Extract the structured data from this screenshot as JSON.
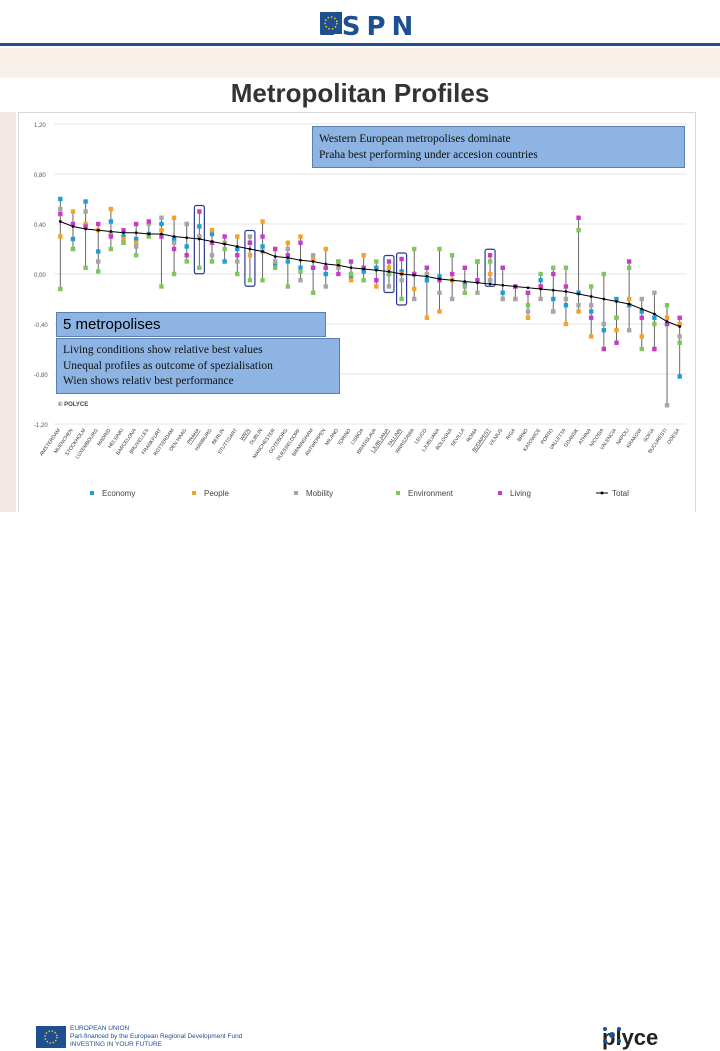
{
  "header": {
    "logo_text_left": "ESP",
    "logo_text_right": "N"
  },
  "title": "Metropolitan Profiles",
  "callout_top": {
    "line1": "Western European metropolises dominate",
    "line2": "Praha best performing under accesion countries"
  },
  "callout_left": {
    "heading": "5 metropolises",
    "line1": "Living conditions show relative best values",
    "line2": "Unequal profiles as outcome of spezialisation",
    "line3": "Wien shows relativ best performance"
  },
  "copyright": "© POLYCE",
  "footer": {
    "eu_line1": "EUROPEAN UNION",
    "eu_line2": "Part-financed by the European Regional Development Fund",
    "eu_line3": "INVESTING IN YOUR FUTURE",
    "brand_left": "p",
    "brand_right": "lyce"
  },
  "colors": {
    "economy": "#1f9ed6",
    "people": "#f4a228",
    "mobility": "#a6a6a6",
    "environment": "#7fc65c",
    "living": "#c83bc9",
    "total": "#000000",
    "callout": "#8eb4e3",
    "brand": "#1d4f91"
  },
  "chart_data": {
    "type": "scatter",
    "title": "",
    "ylim": [
      -1.2,
      1.2
    ],
    "yticks": [
      "1,20",
      "0,80",
      "0,40",
      "0,00",
      "-0,40",
      "-0,80",
      "-1,20"
    ],
    "ytick_values": [
      1.2,
      0.8,
      0.4,
      0.0,
      -0.4,
      -0.8,
      -1.2
    ],
    "categories": [
      "AMSTERDAM",
      "MUENCHEN",
      "STOCKHOLM",
      "LUXEMBOURG",
      "MADRID",
      "HELSINKI",
      "BARCELONA",
      "BRUXELLES",
      "FRANKFURT",
      "ROTTERDAM",
      "DEN HAAG",
      "PRAHA",
      "HAMBURG",
      "BERLIN",
      "STUTTGART",
      "WIEN",
      "DUBLIN",
      "MANCHESTER",
      "GOTEBORG",
      "DUESSELDORF",
      "BIRMINGHAM",
      "ANTWERPEN",
      "MILANO",
      "TORINO",
      "LISBOA",
      "BRATISLAVA",
      "LJUBLJANA",
      "TALLINN",
      "WARSZAWA",
      "LEUCO",
      "LJUBLIANA",
      "BOLOGNA",
      "SEVILLA",
      "ROMA",
      "BUDAPEST",
      "VILNIUS",
      "RIGA",
      "BRNO",
      "KATOWICE",
      "PORTO",
      "VALLETTA",
      "GDANSK",
      "ATHINA",
      "NICOSIA",
      "VALENCIA",
      "NAPOLI",
      "KRAKOW",
      "SOFIA",
      "BUCURESTI",
      "ODESA"
    ],
    "highlighted": [
      "PRAHA",
      "WIEN",
      "LJUBLJANA",
      "TALLINN",
      "BUDAPEST"
    ],
    "series": [
      {
        "name": "Economy",
        "values": [
          0.6,
          0.28,
          0.58,
          0.18,
          0.42,
          0.3,
          0.28,
          0.32,
          0.4,
          0.28,
          0.22,
          0.38,
          0.32,
          0.1,
          0.2,
          0.25,
          0.22,
          0.08,
          0.1,
          0.05,
          0.05,
          0.0,
          0.1,
          -0.02,
          0.02,
          0.05,
          0.0,
          0.02,
          0.0,
          -0.05,
          -0.02,
          -0.05,
          -0.08,
          0.1,
          -0.05,
          -0.15,
          -0.1,
          -0.15,
          -0.05,
          -0.2,
          -0.25,
          -0.15,
          -0.3,
          -0.45,
          -0.2,
          -0.25,
          -0.3,
          -0.35,
          -0.4,
          -0.82
        ]
      },
      {
        "name": "People",
        "values": [
          0.3,
          0.5,
          0.4,
          0.35,
          0.52,
          0.28,
          0.25,
          0.3,
          0.35,
          0.45,
          0.4,
          0.3,
          0.35,
          0.25,
          0.3,
          0.15,
          0.42,
          0.2,
          0.25,
          0.3,
          0.12,
          0.2,
          0.08,
          -0.05,
          0.15,
          -0.1,
          0.05,
          0.0,
          -0.12,
          -0.35,
          -0.3,
          -0.05,
          -0.1,
          0.1,
          0.0,
          -0.2,
          -0.2,
          -0.35,
          -0.1,
          -0.3,
          -0.4,
          -0.3,
          -0.5,
          -0.6,
          -0.45,
          -0.2,
          -0.5,
          -0.6,
          -0.35,
          -0.4
        ]
      },
      {
        "name": "Mobility",
        "values": [
          0.52,
          0.2,
          0.5,
          0.1,
          0.32,
          0.25,
          0.22,
          0.4,
          0.45,
          0.25,
          0.4,
          0.3,
          0.15,
          0.25,
          0.1,
          0.3,
          0.18,
          0.1,
          0.2,
          -0.05,
          0.15,
          -0.1,
          0.05,
          0.0,
          0.05,
          -0.05,
          -0.1,
          -0.05,
          -0.2,
          0.0,
          -0.15,
          -0.2,
          -0.1,
          -0.15,
          -0.05,
          -0.2,
          -0.2,
          -0.3,
          -0.2,
          -0.3,
          -0.2,
          -0.25,
          -0.25,
          -0.4,
          -0.35,
          -0.45,
          -0.2,
          -0.15,
          -1.05,
          -0.5
        ]
      },
      {
        "name": "Environment",
        "values": [
          -0.12,
          0.2,
          0.05,
          0.02,
          0.2,
          0.25,
          0.15,
          0.3,
          -0.1,
          0.0,
          0.1,
          0.05,
          0.1,
          0.2,
          0.0,
          -0.05,
          -0.05,
          0.05,
          -0.1,
          0.02,
          -0.15,
          0.05,
          0.1,
          0.0,
          -0.05,
          0.1,
          0.0,
          -0.2,
          0.2,
          0.05,
          0.2,
          0.15,
          -0.15,
          0.1,
          0.1,
          0.05,
          -0.1,
          -0.25,
          0.0,
          0.05,
          0.05,
          0.35,
          -0.1,
          0.0,
          -0.35,
          0.05,
          -0.6,
          -0.4,
          -0.25,
          -0.55
        ]
      },
      {
        "name": "Living",
        "values": [
          0.48,
          0.4,
          0.38,
          0.4,
          0.3,
          0.35,
          0.4,
          0.42,
          0.3,
          0.2,
          0.15,
          0.5,
          0.25,
          0.3,
          0.15,
          0.25,
          0.3,
          0.2,
          0.15,
          0.25,
          0.05,
          0.05,
          0.0,
          0.1,
          0.05,
          -0.05,
          0.1,
          0.12,
          0.0,
          0.05,
          -0.05,
          0.0,
          0.05,
          -0.05,
          0.15,
          0.05,
          -0.1,
          -0.15,
          -0.1,
          0.0,
          -0.1,
          0.45,
          -0.35,
          -0.6,
          -0.55,
          0.1,
          -0.35,
          -0.6,
          -0.4,
          -0.35
        ]
      },
      {
        "name": "Total",
        "values": [
          0.42,
          0.38,
          0.36,
          0.35,
          0.34,
          0.33,
          0.33,
          0.32,
          0.32,
          0.3,
          0.29,
          0.28,
          0.26,
          0.24,
          0.22,
          0.2,
          0.18,
          0.14,
          0.13,
          0.11,
          0.1,
          0.08,
          0.07,
          0.05,
          0.04,
          0.03,
          0.02,
          0.0,
          -0.01,
          -0.02,
          -0.04,
          -0.05,
          -0.06,
          -0.07,
          -0.08,
          -0.09,
          -0.1,
          -0.11,
          -0.12,
          -0.13,
          -0.14,
          -0.16,
          -0.18,
          -0.2,
          -0.22,
          -0.24,
          -0.28,
          -0.32,
          -0.38,
          -0.42
        ]
      }
    ],
    "legend": [
      "Economy",
      "People",
      "Mobility",
      "Environment",
      "Living",
      "Total"
    ],
    "legend_position": "bottom"
  }
}
